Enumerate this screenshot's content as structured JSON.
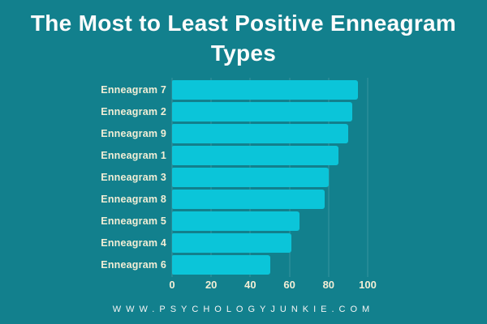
{
  "title": "The Most to Least Positive Enneagram Types",
  "footer": "WWW.PSYCHOLOGYJUNKIE.COM",
  "colors": {
    "background": "#12808D",
    "bar": "#0BC5D9",
    "category_label": "#F2EED6",
    "tick_label": "#F2EED6",
    "title_text": "#FCFCFC",
    "footer_text": "#F5F5F5",
    "gridline": "rgba(255,255,255,0.16)"
  },
  "chart_data": {
    "type": "bar",
    "orientation": "horizontal",
    "title": "The Most to Least Positive Enneagram Types",
    "categories": [
      "Enneagram 7",
      "Enneagram 2",
      "Enneagram 9",
      "Enneagram 1",
      "Enneagram 3",
      "Enneagram 8",
      "Enneagram 5",
      "Enneagram 4",
      "Enneagram 6"
    ],
    "values": [
      95,
      92,
      90,
      85,
      80,
      78,
      65,
      61,
      50
    ],
    "xlabel": "",
    "ylabel": "",
    "xlim": [
      0,
      100
    ],
    "x_ticks": [
      0,
      20,
      40,
      60,
      80,
      100
    ],
    "grid": true,
    "legend": false
  }
}
